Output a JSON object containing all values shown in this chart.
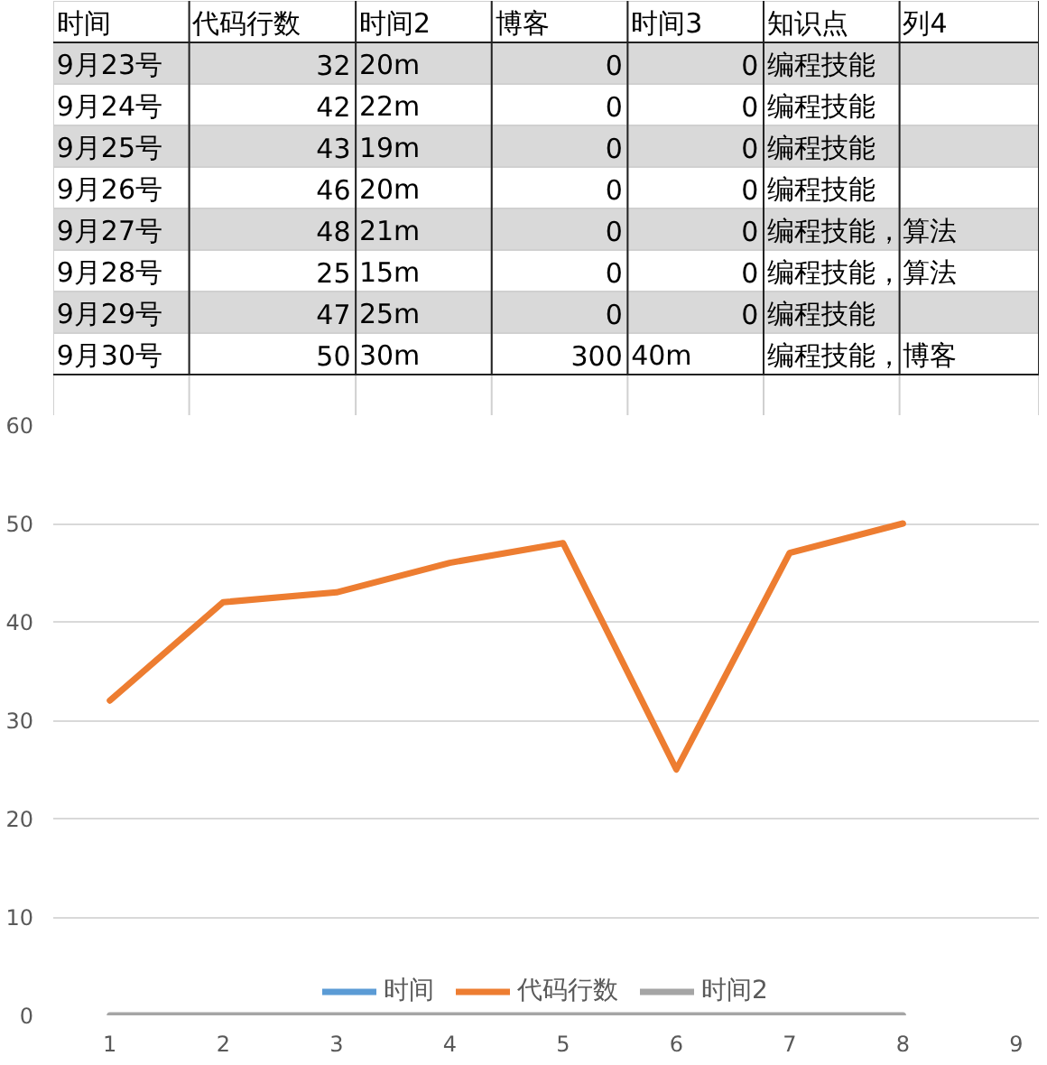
{
  "chart_data": [
    {
      "type": "other",
      "annotations": [
        "时间",
        "代码行数",
        "时间2",
        "博客",
        "时间3",
        "知识点",
        "列4",
        "9月23号",
        "32",
        "20m",
        "0",
        "0",
        "编程技能",
        null,
        "9月24号",
        "42",
        "22m",
        "0",
        "0",
        "编程技能",
        null,
        "9月25号",
        "43",
        "19m",
        "0",
        "0",
        "编程技能",
        null,
        "9月26号",
        "46",
        "20m",
        "0",
        "0",
        "编程技能",
        null,
        "9月27号",
        "48",
        "21m",
        "0",
        "0",
        "编程技能，",
        "算法",
        "9月28号",
        "25",
        "15m",
        "0",
        "0",
        "编程技能，",
        "算法",
        "9月29号",
        "47",
        "25m",
        "0",
        "0",
        "编程技能",
        null,
        "9月30号",
        "50",
        "30m",
        "300",
        "40m",
        "编程技能，",
        "博客"
      ]
    },
    {
      "type": "line",
      "x": [
        1,
        2,
        3,
        4,
        5,
        6,
        7,
        8
      ],
      "xlim": [
        0.5,
        9.2
      ],
      "xticks": [
        1,
        2,
        3,
        4,
        5,
        6,
        7,
        8,
        9
      ],
      "ylim": [
        0,
        60
      ],
      "yticks": [
        0,
        10,
        20,
        30,
        40,
        50,
        60
      ],
      "grid": "y",
      "legend": "bottom",
      "series": [
        {
          "name": "时间",
          "color": "#5b9bd5",
          "values": [
            null,
            null,
            null,
            null,
            null,
            null,
            null,
            null
          ]
        },
        {
          "name": "代码行数",
          "color": "#ed7d31",
          "values": [
            32,
            42,
            43,
            46,
            48,
            25,
            47,
            50
          ]
        },
        {
          "name": "时间2",
          "color": "#a5a5a5",
          "values": [
            0,
            0,
            0,
            0,
            0,
            0,
            0,
            0
          ]
        }
      ]
    }
  ]
}
